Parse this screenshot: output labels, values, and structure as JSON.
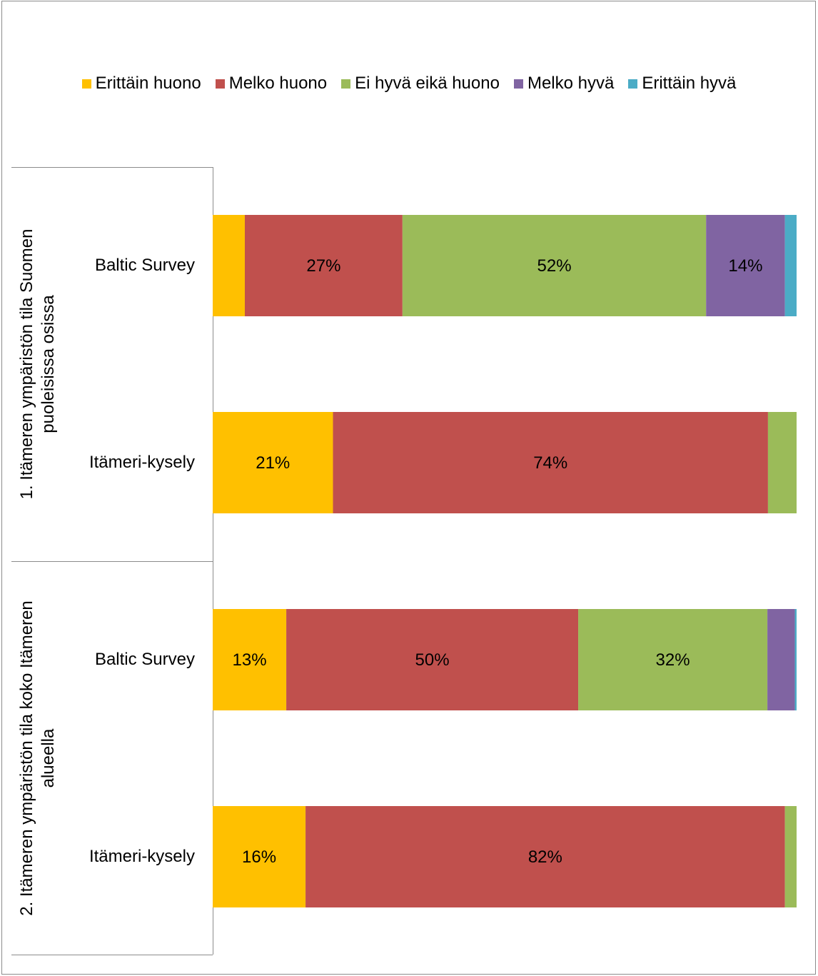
{
  "chart_data": {
    "type": "bar",
    "orientation": "horizontal",
    "stacked": true,
    "xlim": [
      0,
      100
    ],
    "legend_position": "top",
    "series": [
      {
        "name": "Erittäin huono",
        "color": "#FFC000"
      },
      {
        "name": "Melko huono",
        "color": "#C0504D"
      },
      {
        "name": "Ei hyvä eikä huono",
        "color": "#9BBB59"
      },
      {
        "name": "Melko hyvä",
        "color": "#8064A2"
      },
      {
        "name": "Erittäin hyvä",
        "color": "#4BACC6"
      }
    ],
    "groups": [
      {
        "label_lines": [
          "1. Itämeren ympäristön tila Suomen",
          "puoleisissa osissa"
        ],
        "bars": [
          {
            "category": "Baltic Survey",
            "values": [
              5.5,
              27,
              52,
              13.5,
              2
            ],
            "labels": [
              "",
              "27%",
              "52%",
              "14%",
              ""
            ]
          },
          {
            "category": "Itämeri-kysely",
            "values": [
              20.6,
              74.5,
              4.9,
              0,
              0
            ],
            "labels": [
              "21%",
              "74%",
              "",
              "",
              ""
            ]
          }
        ]
      },
      {
        "label_lines": [
          "2. Itämeren ympäristön  tila koko Itämeren",
          "alueella"
        ],
        "bars": [
          {
            "category": "Baltic Survey",
            "values": [
              12.6,
              50,
              32.4,
              4.7,
              0.3
            ],
            "labels": [
              "13%",
              "50%",
              "32%",
              "",
              ""
            ]
          },
          {
            "category": "Itämeri-kysely",
            "values": [
              15.9,
              82.1,
              2,
              0,
              0
            ],
            "labels": [
              "16%",
              "82%",
              "",
              "",
              ""
            ]
          }
        ]
      }
    ]
  }
}
